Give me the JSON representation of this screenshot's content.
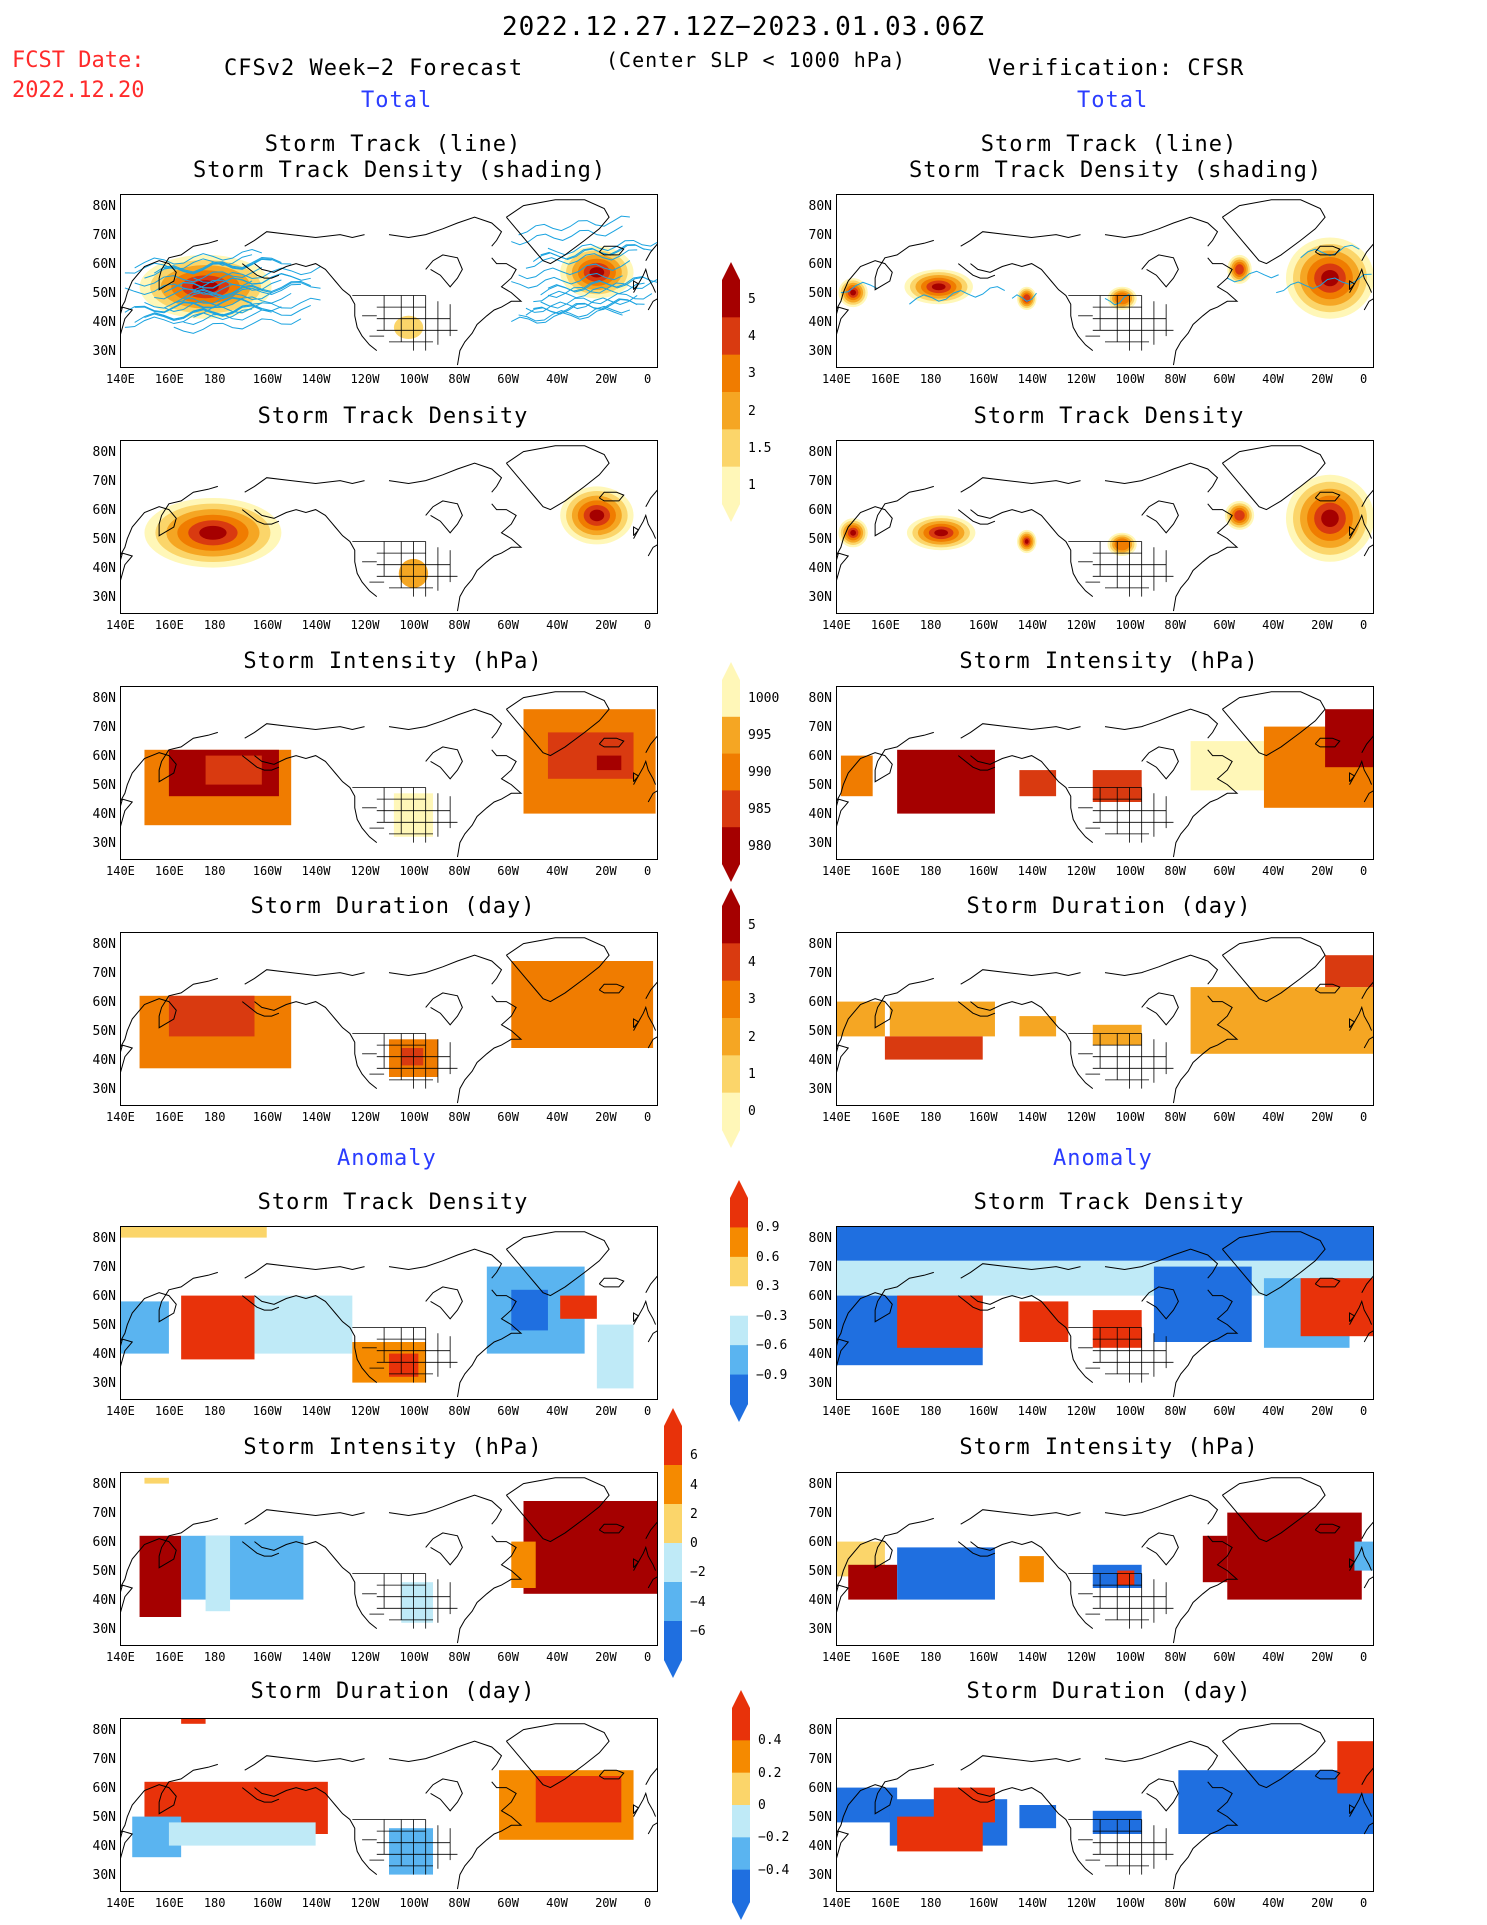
{
  "header": {
    "period": "2022.12.27.12Z−2023.01.03.06Z",
    "subtitle": "(Center SLP < 1000 hPa)",
    "fcst_label": "FCST Date:",
    "fcst_date": "2022.12.20",
    "left_heading": "CFSv2 Week−2 Forecast",
    "right_heading": "Verification: CFSR",
    "total_label": "Total",
    "anomaly_label": "Anomaly"
  },
  "panels": {
    "track_title_1": "Storm Track (line)",
    "track_title_2": "Storm Track Density (shading)",
    "density": "Storm Track Density",
    "intensity": "Storm Intensity (hPa)",
    "duration": "Storm Duration (day)"
  },
  "axes": {
    "lat_ticks": [
      "80N",
      "70N",
      "60N",
      "50N",
      "40N",
      "30N"
    ],
    "lon_ticks": [
      "140E",
      "160E",
      "180",
      "160W",
      "140W",
      "120W",
      "100W",
      "80W",
      "60W",
      "40W",
      "20W",
      "0"
    ]
  },
  "colorbars": {
    "density": {
      "labels": [
        "5",
        "4",
        "3",
        "2",
        "1.5",
        "1"
      ],
      "colors": [
        "#a50000",
        "#d93a10",
        "#f07c00",
        "#f5a623",
        "#fbd56a",
        "#fff7b8"
      ]
    },
    "intensity": {
      "labels": [
        "1000",
        "995",
        "990",
        "985",
        "980"
      ],
      "colors": [
        "#fff7b8",
        "#f5a623",
        "#f07c00",
        "#d93a10",
        "#a50000"
      ]
    },
    "duration": {
      "labels": [
        "5",
        "4",
        "3",
        "2",
        "1",
        "0"
      ],
      "colors": [
        "#a50000",
        "#d93a10",
        "#f07c00",
        "#f5a623",
        "#fbd56a",
        "#fff7b8"
      ]
    },
    "anom_density": {
      "labels": [
        "0.9",
        "0.6",
        "0.3",
        "−0.3",
        "−0.6",
        "−0.9"
      ],
      "colors": [
        "#e8320a",
        "#f58a00",
        "#fbd56a",
        "#ffffff",
        "#bfeaf7",
        "#5ab4f0",
        "#1f6fe0"
      ]
    },
    "anom_intensity": {
      "labels": [
        "6",
        "4",
        "2",
        "0",
        "−2",
        "−4",
        "−6"
      ],
      "colors": [
        "#e8320a",
        "#f58a00",
        "#fbd56a",
        "#bfeaf7",
        "#5ab4f0",
        "#1f6fe0"
      ]
    },
    "anom_duration": {
      "labels": [
        "0.4",
        "0.2",
        "0",
        "−0.2",
        "−0.4"
      ],
      "colors": [
        "#e8320a",
        "#f58a00",
        "#fbd56a",
        "#bfeaf7",
        "#5ab4f0",
        "#1f6fe0"
      ]
    }
  }
}
